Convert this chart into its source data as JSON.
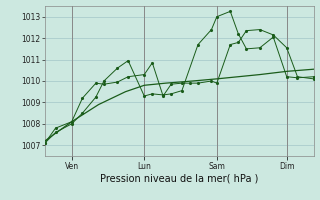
{
  "background_color": "#cce8e0",
  "grid_color": "#aacccc",
  "line_color": "#1a5c1a",
  "xlabel": "Pression niveau de la mer( hPa )",
  "ylim": [
    1006.5,
    1013.5
  ],
  "yticks": [
    1007,
    1008,
    1009,
    1010,
    1011,
    1012,
    1013
  ],
  "day_labels": [
    "Ven",
    "Lun",
    "Sam",
    "Dim"
  ],
  "day_positions": [
    0.1,
    0.37,
    0.64,
    0.9
  ],
  "series1_x": [
    0.0,
    0.04,
    0.1,
    0.14,
    0.19,
    0.22,
    0.27,
    0.31,
    0.37,
    0.4,
    0.44,
    0.47,
    0.51,
    0.54,
    0.57,
    0.62,
    0.64,
    0.69,
    0.72,
    0.75,
    0.8,
    0.85,
    0.9,
    0.94,
    1.0
  ],
  "series1_y": [
    1007.1,
    1007.8,
    1008.1,
    1009.2,
    1009.9,
    1009.85,
    1009.95,
    1010.2,
    1010.3,
    1010.85,
    1009.3,
    1009.85,
    1009.9,
    1009.9,
    1009.9,
    1010.0,
    1009.9,
    1011.7,
    1011.8,
    1012.35,
    1012.4,
    1012.15,
    1011.55,
    1010.2,
    1010.1
  ],
  "series2_x": [
    0.0,
    0.1,
    0.2,
    0.3,
    0.37,
    0.45,
    0.55,
    0.64,
    0.72,
    0.8,
    0.9,
    1.0
  ],
  "series2_y": [
    1007.2,
    1008.1,
    1008.9,
    1009.5,
    1009.8,
    1009.9,
    1010.0,
    1010.1,
    1010.2,
    1010.3,
    1010.45,
    1010.55
  ],
  "series3_x": [
    0.0,
    0.04,
    0.1,
    0.14,
    0.19,
    0.22,
    0.27,
    0.31,
    0.37,
    0.4,
    0.44,
    0.47,
    0.51,
    0.57,
    0.62,
    0.64,
    0.69,
    0.72,
    0.75,
    0.8,
    0.85,
    0.9,
    0.94,
    1.0
  ],
  "series3_y": [
    1007.1,
    1007.6,
    1008.0,
    1008.5,
    1009.25,
    1010.0,
    1010.6,
    1010.95,
    1009.3,
    1009.4,
    1009.35,
    1009.4,
    1009.55,
    1011.7,
    1012.4,
    1013.0,
    1013.25,
    1012.2,
    1011.5,
    1011.55,
    1012.05,
    1010.2,
    1010.15,
    1010.2
  ]
}
